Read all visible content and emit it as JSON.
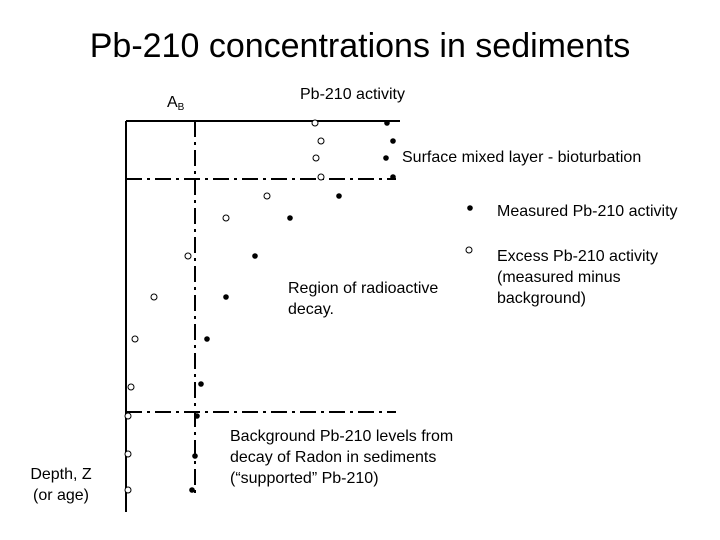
{
  "title": "Pb-210 concentrations in sediments",
  "axes": {
    "x_label": "Pb-210 activity",
    "y_label_line1": "Depth, Z",
    "y_label_line2": "(or age)",
    "background_marker_main": "A",
    "background_marker_sub": "B"
  },
  "annotations": {
    "surface_layer": "Surface mixed layer - bioturbation",
    "decay_line1": "Region of radioactive",
    "decay_line2": "decay.",
    "background_line1": "Background Pb-210 levels from",
    "background_line2": "decay of Radon in sediments",
    "background_line3": "(“supported” Pb-210)"
  },
  "legend": {
    "measured": "Measured Pb-210 activity",
    "excess_line1": "Excess Pb-210 activity",
    "excess_line2": "(measured minus",
    "excess_line3": "background)"
  },
  "colors": {
    "ink": "#000000",
    "open_marker_fill": "#ffffff"
  }
}
